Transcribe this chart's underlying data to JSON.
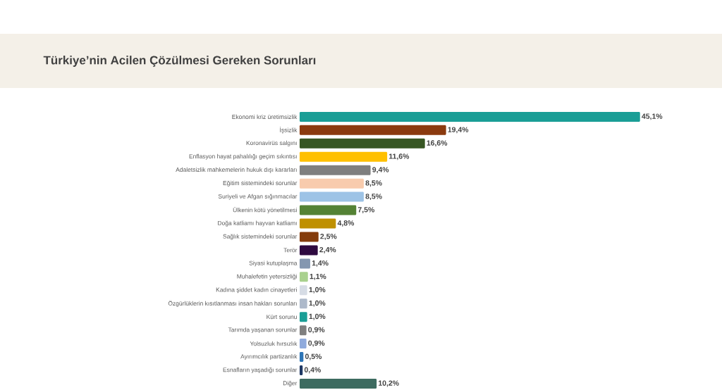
{
  "chart_data": {
    "type": "bar",
    "orientation": "horizontal",
    "title": "Türkiye’nin Acilen Çözülmesi Gereken Sorunları",
    "categories": [
      "Ekonomi kriz üretimsizlik",
      "İşsizlik",
      "Koronavirüs salgını",
      "Enflasyon hayat pahalılığı geçim sıkıntısı",
      "Adaletsizlik mahkemelerin hukuk dışı kararları",
      "Eğitim sistemindeki sorunlar",
      "Suriyeli ve Afgan sığınmacılar",
      "Ülkenin kötü yönetilmesi",
      "Doğa katliamı hayvan katliamı",
      "Sağlık sistemindeki sorunlar",
      "Terör",
      "Siyasi kutuplaşma",
      "Muhalefetin yetersizliği",
      "Kadına şiddet kadın cinayetleri",
      "Özgürlüklerin kısıtlanması insan hakları sorunları",
      "Kürt sorunu",
      "Tarımda yaşanan sorunlar",
      "Yolsuzluk hırsızlık",
      "Ayırımcılık partizanlık",
      "Esnafların yaşadığı sorunlar",
      "Diğer"
    ],
    "values": [
      45.1,
      19.4,
      16.6,
      11.6,
      9.4,
      8.5,
      8.5,
      7.5,
      4.8,
      2.5,
      2.4,
      1.4,
      1.1,
      1.0,
      1.0,
      1.0,
      0.9,
      0.9,
      0.5,
      0.4,
      10.2
    ],
    "value_labels": [
      "45,1%",
      "19,4%",
      "16,6%",
      "11,6%",
      "9,4%",
      "8,5%",
      "8,5%",
      "7,5%",
      "4,8%",
      "2,5%",
      "2,4%",
      "1,4%",
      "1,1%",
      "1,0%",
      "1,0%",
      "1,0%",
      "0,9%",
      "0,9%",
      "0,5%",
      "0,4%",
      "10,2%"
    ],
    "colors": [
      "#1a9e96",
      "#8b3a0f",
      "#375623",
      "#ffc000",
      "#7f7f7f",
      "#f8cbad",
      "#9dc3e6",
      "#548235",
      "#bf9000",
      "#843c0c",
      "#2e0a40",
      "#8497b0",
      "#a9d18e",
      "#d6dce5",
      "#adb9ca",
      "#1a9e96",
      "#7f7f7f",
      "#8faadc",
      "#2e75b6",
      "#1f3864",
      "#3d6b60"
    ],
    "tick_labels": "y"
  }
}
